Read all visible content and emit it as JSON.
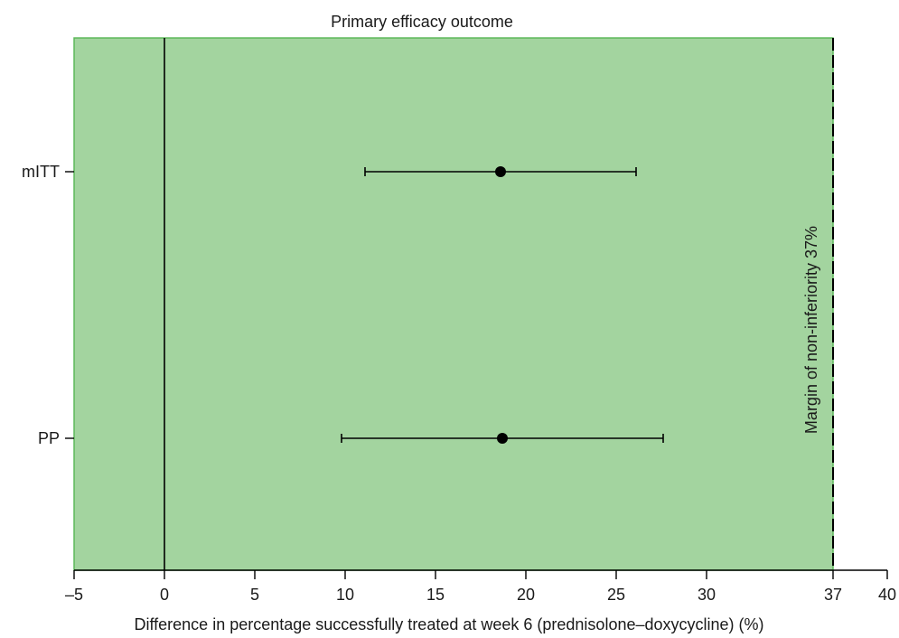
{
  "chart_data": {
    "type": "forest",
    "title": "Primary efficacy outcome",
    "xlabel": "Difference in percentage successfully treated at week 6 (prednisolone–doxycycline) (%)",
    "ylabel": "",
    "xlim": [
      -5,
      40
    ],
    "x_ticks": [
      -5,
      0,
      5,
      10,
      15,
      20,
      25,
      30,
      37,
      40
    ],
    "x_tick_labels": [
      "–5",
      "0",
      "5",
      "10",
      "15",
      "20",
      "25",
      "30",
      "37",
      "40"
    ],
    "categories": [
      "mITT",
      "PP"
    ],
    "estimates": [
      {
        "label": "mITT",
        "point": 18.6,
        "lower": 11.1,
        "upper": 26.1
      },
      {
        "label": "PP",
        "point": 18.7,
        "lower": 9.8,
        "upper": 27.6
      }
    ],
    "reference_line": 0,
    "margin": {
      "value": 37,
      "label": "Margin of non-inferiority 37%"
    },
    "shaded_region": [
      -5,
      37
    ],
    "grid": false,
    "colors": {
      "shade": "#a3d49f",
      "shade_border": "#5db85a",
      "marker": "#000000",
      "line": "#000000"
    }
  }
}
